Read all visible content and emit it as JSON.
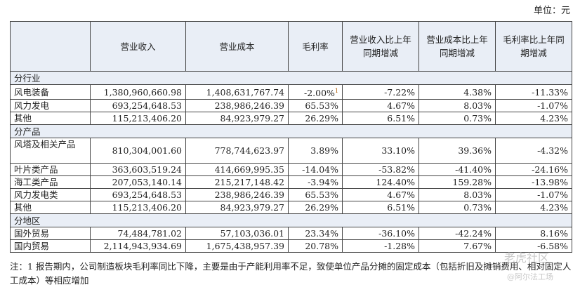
{
  "unit_label": "单位：元",
  "headers": [
    "营业收入",
    "营业成本",
    "毛利率",
    "营业收入比上年同期增减",
    "营业成本比上年同期增减",
    "毛利率比上年同期增减"
  ],
  "sections": [
    {
      "title": "分行业",
      "rows": [
        {
          "name": "风电装备",
          "revenue": "1,380,960,660.98",
          "cost": "1,408,631,767.74",
          "margin": "-2.00%",
          "margin_mark": "1",
          "rev_chg": "-7.22%",
          "cost_chg": "4.38%",
          "margin_chg": "-11.33%"
        },
        {
          "name": "风力发电",
          "revenue": "693,254,648.53",
          "cost": "238,986,246.39",
          "margin": "65.53%",
          "rev_chg": "4.67%",
          "cost_chg": "8.03%",
          "margin_chg": "-1.07%"
        },
        {
          "name": "其他",
          "revenue": "115,213,406.20",
          "cost": "84,923,979.27",
          "margin": "26.29%",
          "rev_chg": "6.51%",
          "cost_chg": "0.73%",
          "margin_chg": "4.23%"
        }
      ]
    },
    {
      "title": "分产品",
      "rows": [
        {
          "name": "风塔及相关产品",
          "revenue": "810,304,001.60",
          "cost": "778,744,623.97",
          "margin": "3.89%",
          "rev_chg": "33.10%",
          "cost_chg": "39.36%",
          "margin_chg": "-4.32%",
          "tall": true
        },
        {
          "name": "叶片类产品",
          "revenue": "363,603,519.24",
          "cost": "414,669,995.35",
          "margin": "-14.04%",
          "rev_chg": "-53.82%",
          "cost_chg": "-41.40%",
          "margin_chg": "-24.16%"
        },
        {
          "name": "海工类产品",
          "revenue": "207,053,140.14",
          "cost": "215,217,148.42",
          "margin": "-3.94%",
          "rev_chg": "124.40%",
          "cost_chg": "159.28%",
          "margin_chg": "-13.98%"
        },
        {
          "name": "风力发电类",
          "revenue": "693,254,648.53",
          "cost": "238,986,246.39",
          "margin": "65.53%",
          "rev_chg": "4.67%",
          "cost_chg": "8.03%",
          "margin_chg": "-1.07%"
        },
        {
          "name": "其他",
          "revenue": "115,213,406.20",
          "cost": "84,923,979.27",
          "margin": "26.29%",
          "rev_chg": "6.51%",
          "cost_chg": "0.73%",
          "margin_chg": "4.23%"
        }
      ]
    },
    {
      "title": "分地区",
      "rows": [
        {
          "name": "国外贸易",
          "revenue": "74,484,781.02",
          "cost": "57,103,036.01",
          "margin": "23.34%",
          "rev_chg": "-36.10%",
          "cost_chg": "-42.24%",
          "margin_chg": "8.16%"
        },
        {
          "name": "国内贸易",
          "revenue": "2,114,943,934.69",
          "cost": "1,675,438,957.39",
          "margin": "20.78%",
          "rev_chg": "-1.28%",
          "cost_chg": "7.67%",
          "margin_chg": "-6.58%"
        }
      ]
    }
  ],
  "note": "注：1 报告期内，公司制造板块毛利率同比下降，主要是由于产能利用率不足，致使单位产品分摊的固定成本（包括折旧及摊销费用、相对固定人工成本）等相应增加",
  "watermark_1": "老虎社区",
  "watermark_2": "@阿尔法工场"
}
